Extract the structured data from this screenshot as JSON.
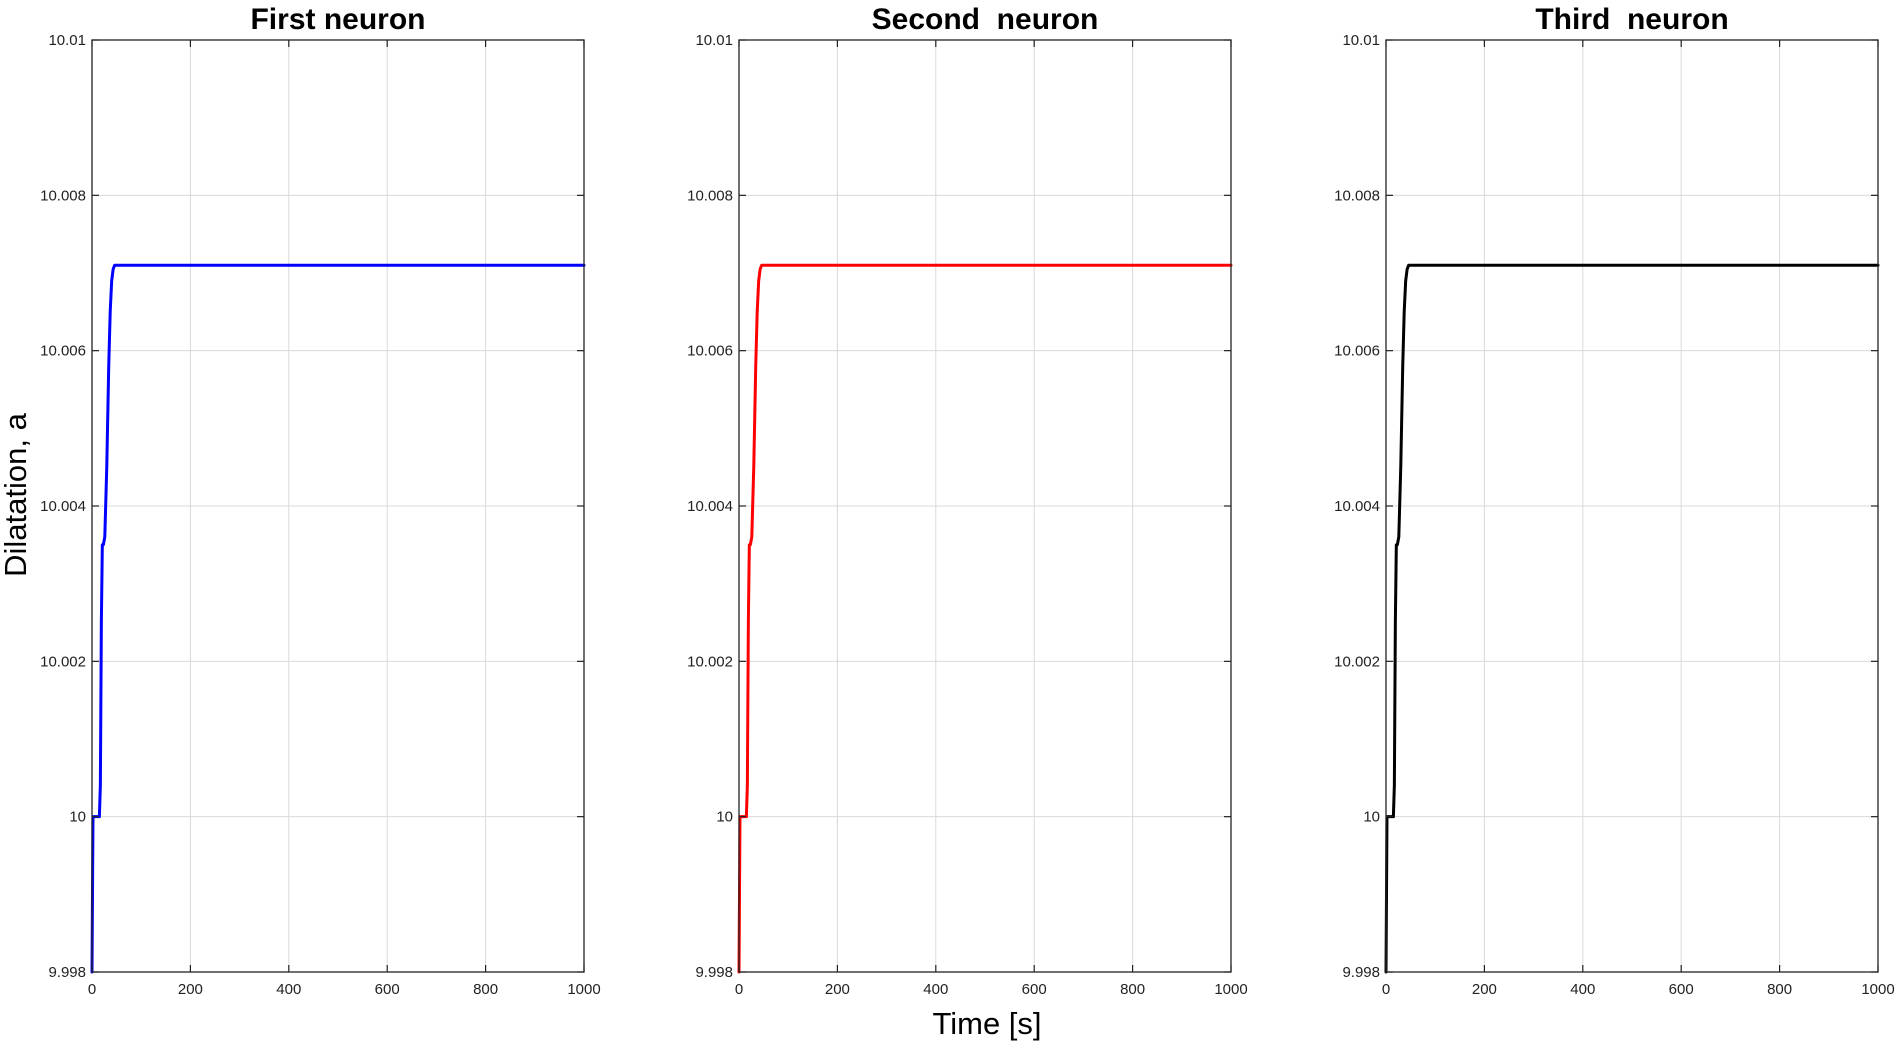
{
  "figure": {
    "ylabel": "Dilatation, a",
    "xlabel": "Time [s]"
  },
  "chart_data": [
    {
      "type": "line",
      "title": "First neuron",
      "xlim": [
        0,
        1000
      ],
      "ylim": [
        9.998,
        10.01
      ],
      "xticks": [
        0,
        200,
        400,
        600,
        800,
        1000
      ],
      "yticks": [
        9.998,
        10,
        10.002,
        10.004,
        10.006,
        10.008,
        10.01
      ],
      "xtick_labels": [
        "0",
        "200",
        "400",
        "600",
        "800",
        "1000"
      ],
      "ytick_labels": [
        "9.998",
        "10",
        "10.002",
        "10.004",
        "10.006",
        "10.008",
        "10.01"
      ],
      "grid": true,
      "color": "#0000ff",
      "series": [
        {
          "x": [
            0,
            2,
            5,
            10,
            15,
            17,
            19,
            21,
            23,
            26,
            30,
            34,
            37,
            40,
            43,
            46,
            50,
            60,
            100,
            200,
            400,
            600,
            800,
            1000
          ],
          "y": [
            9.998,
            10.0,
            10.0,
            10.0,
            10.0,
            10.0004,
            10.0025,
            10.0035,
            10.0035,
            10.0036,
            10.0045,
            10.0058,
            10.0065,
            10.0069,
            10.00705,
            10.0071,
            10.0071,
            10.0071,
            10.0071,
            10.0071,
            10.0071,
            10.0071,
            10.0071,
            10.0071
          ]
        }
      ]
    },
    {
      "type": "line",
      "title": "Second  neuron",
      "xlim": [
        0,
        1000
      ],
      "ylim": [
        9.998,
        10.01
      ],
      "xticks": [
        0,
        200,
        400,
        600,
        800,
        1000
      ],
      "yticks": [
        9.998,
        10,
        10.002,
        10.004,
        10.006,
        10.008,
        10.01
      ],
      "xtick_labels": [
        "0",
        "200",
        "400",
        "600",
        "800",
        "1000"
      ],
      "ytick_labels": [
        "9.998",
        "10",
        "10.002",
        "10.004",
        "10.006",
        "10.008",
        "10.01"
      ],
      "grid": true,
      "color": "#ff0000",
      "series": [
        {
          "x": [
            0,
            2,
            5,
            10,
            15,
            17,
            19,
            21,
            23,
            26,
            30,
            34,
            37,
            40,
            43,
            46,
            50,
            60,
            100,
            200,
            400,
            600,
            800,
            1000
          ],
          "y": [
            9.998,
            10.0,
            10.0,
            10.0,
            10.0,
            10.0004,
            10.0025,
            10.0035,
            10.0035,
            10.0036,
            10.0045,
            10.0058,
            10.0065,
            10.0069,
            10.00705,
            10.0071,
            10.0071,
            10.0071,
            10.0071,
            10.0071,
            10.0071,
            10.0071,
            10.0071,
            10.0071
          ]
        }
      ]
    },
    {
      "type": "line",
      "title": "Third  neuron",
      "xlim": [
        0,
        1000
      ],
      "ylim": [
        9.998,
        10.01
      ],
      "xticks": [
        0,
        200,
        400,
        600,
        800,
        1000
      ],
      "yticks": [
        9.998,
        10,
        10.002,
        10.004,
        10.006,
        10.008,
        10.01
      ],
      "xtick_labels": [
        "0",
        "200",
        "400",
        "600",
        "800",
        "1000"
      ],
      "ytick_labels": [
        "9.998",
        "10",
        "10.002",
        "10.004",
        "10.006",
        "10.008",
        "10.01"
      ],
      "grid": true,
      "color": "#000000",
      "series": [
        {
          "x": [
            0,
            2,
            5,
            10,
            15,
            17,
            19,
            21,
            23,
            26,
            30,
            34,
            37,
            40,
            43,
            46,
            50,
            60,
            100,
            200,
            400,
            600,
            800,
            1000
          ],
          "y": [
            9.998,
            10.0,
            10.0,
            10.0,
            10.0,
            10.0004,
            10.0025,
            10.0035,
            10.0035,
            10.0036,
            10.0045,
            10.0058,
            10.0065,
            10.0069,
            10.00705,
            10.0071,
            10.0071,
            10.0071,
            10.0071,
            10.0071,
            10.0071,
            10.0071,
            10.0071,
            10.0071
          ]
        }
      ]
    }
  ]
}
